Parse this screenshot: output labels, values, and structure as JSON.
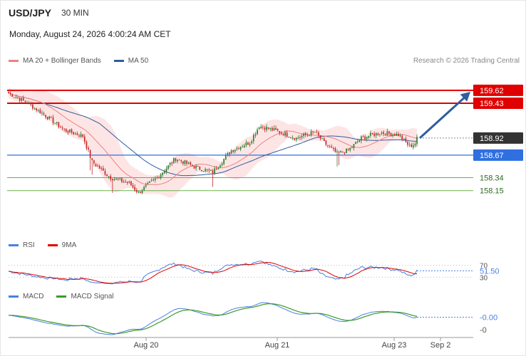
{
  "header": {
    "symbol": "USD/JPY",
    "timeframe": "30 MIN",
    "datetime": "Monday, August 24, 2026 4:00:24 AM CET",
    "copyright": "Research © 2026 Trading Central"
  },
  "legend": {
    "ma20": "MA 20 + Bollinger Bands",
    "ma50": "MA 50",
    "rsi": "RSI",
    "rsi_ma": "9MA",
    "macd": "MACD",
    "macd_signal": "MACD Signal"
  },
  "colors": {
    "ma20": "#f08080",
    "ma50": "#2f5d9e",
    "bollinger_fill": "#fde0e0",
    "candle_up": "#2e7d32",
    "candle_down": "#c62828",
    "resistance": "#e00000",
    "pivot": "#2f6fe0",
    "support": "#6ab04c",
    "last": "#333333",
    "rsi": "#4a7fe0",
    "rsi_ma": "#e00000",
    "macd": "#4a7fe0",
    "macd_signal": "#3a9a2a",
    "arrow": "#2f5d9e"
  },
  "chart_data": [
    {
      "type": "candlestick",
      "title": "USD/JPY 30 MIN",
      "ylim": [
        157.5,
        159.9
      ],
      "x_ticks": [
        "Aug 20",
        "Aug 21",
        "Aug 23",
        "Sep 2"
      ],
      "levels": [
        {
          "value": 159.62,
          "label": "159.62",
          "kind": "resistance"
        },
        {
          "value": 159.43,
          "label": "159.43",
          "kind": "resistance"
        },
        {
          "value": 158.92,
          "label": "158.92",
          "kind": "last"
        },
        {
          "value": 158.67,
          "label": "158.67",
          "kind": "pivot"
        },
        {
          "value": 158.34,
          "label": "158.34",
          "kind": "support"
        },
        {
          "value": 158.15,
          "label": "158.15",
          "kind": "support"
        }
      ],
      "close_waypoints": [
        [
          0,
          159.58
        ],
        [
          10,
          159.44
        ],
        [
          20,
          159.25
        ],
        [
          30,
          159.04
        ],
        [
          40,
          158.95
        ],
        [
          45,
          158.57
        ],
        [
          55,
          158.34
        ],
        [
          65,
          158.26
        ],
        [
          70,
          158.12
        ],
        [
          80,
          158.34
        ],
        [
          90,
          158.62
        ],
        [
          100,
          158.5
        ],
        [
          110,
          158.42
        ],
        [
          120,
          158.74
        ],
        [
          130,
          158.86
        ],
        [
          135,
          159.1
        ],
        [
          145,
          159.02
        ],
        [
          155,
          158.92
        ],
        [
          165,
          159.01
        ],
        [
          170,
          158.85
        ],
        [
          177,
          158.69
        ],
        [
          183,
          158.74
        ],
        [
          190,
          158.92
        ],
        [
          200,
          159.0
        ],
        [
          210,
          158.97
        ],
        [
          216,
          158.8
        ],
        [
          219,
          158.84
        ],
        [
          220,
          158.91
        ]
      ],
      "series": [
        {
          "name": "MA 20 + Bollinger Bands"
        },
        {
          "name": "MA 50"
        }
      ],
      "projection": {
        "from": 158.92,
        "to": 159.62
      }
    },
    {
      "type": "line",
      "title": "RSI",
      "ylim": [
        0,
        100
      ],
      "y_ticks": [
        "70",
        "51.50",
        "30"
      ],
      "last_value": 51.5,
      "series": [
        {
          "name": "RSI"
        },
        {
          "name": "9MA"
        }
      ]
    },
    {
      "type": "line",
      "title": "MACD",
      "y_ticks": [
        "-0.00",
        "-0"
      ],
      "last_value": -0.0,
      "series": [
        {
          "name": "MACD"
        },
        {
          "name": "MACD Signal"
        }
      ]
    }
  ]
}
